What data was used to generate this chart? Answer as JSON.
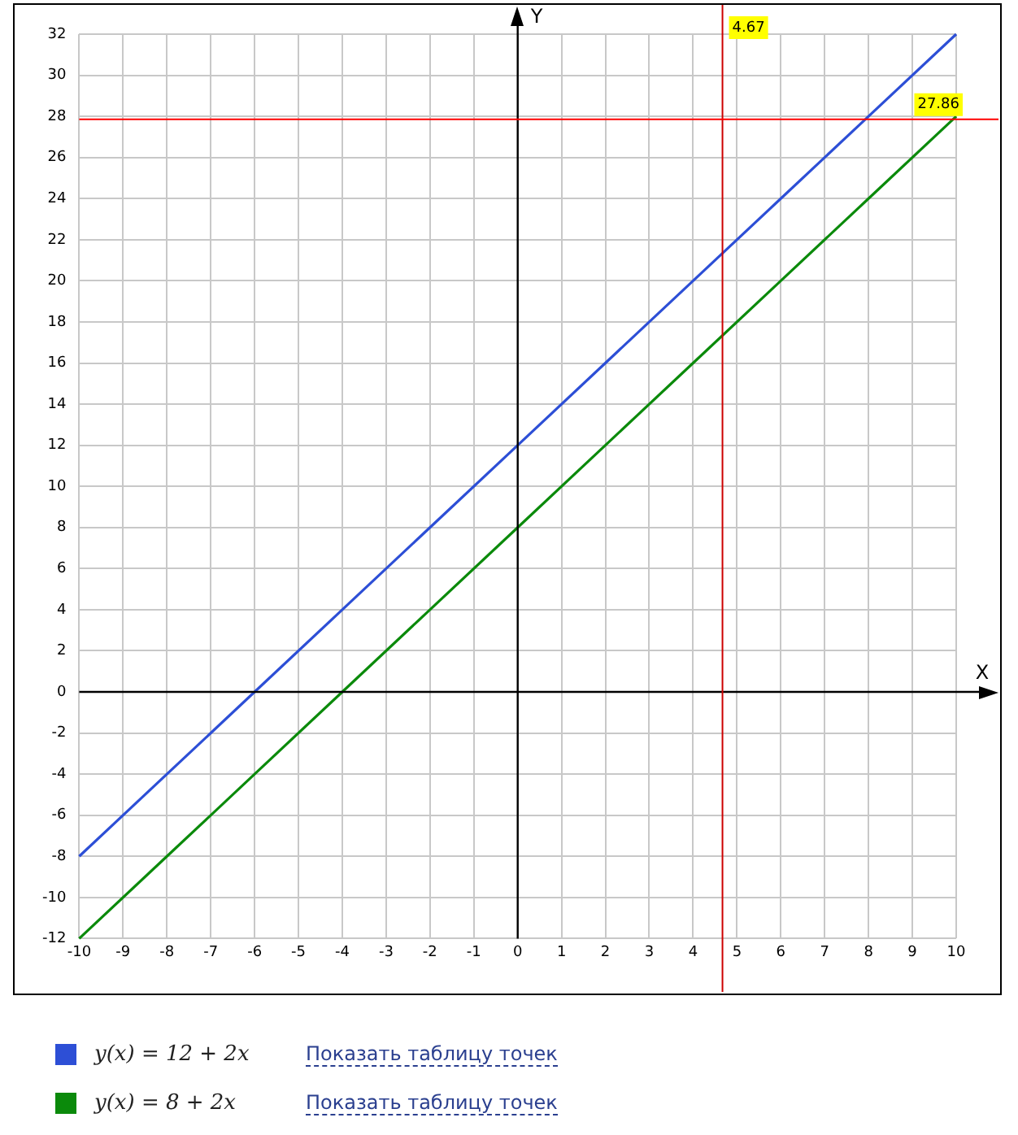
{
  "chart_data": {
    "type": "line",
    "xlabel": "X",
    "ylabel": "Y",
    "series": [
      {
        "name": "y(x) = 12 + 2x",
        "color": "#2d4fd6",
        "values": [
          -8,
          -4,
          0,
          4,
          8,
          12,
          16,
          20,
          24,
          28,
          32
        ]
      },
      {
        "name": "y(x) = 8 + 2x",
        "color": "#0b8a0b",
        "values": [
          -12,
          -8,
          -4,
          0,
          4,
          8,
          12,
          16,
          20,
          24,
          28
        ]
      }
    ],
    "x": [
      -10,
      -8,
      -6,
      -4,
      -2,
      0,
      2,
      4,
      6,
      8,
      10
    ],
    "xlim": [
      -10,
      10
    ],
    "xticks": [
      -10,
      -9,
      -8,
      -7,
      -6,
      -5,
      -4,
      -3,
      -2,
      -1,
      0,
      1,
      2,
      3,
      4,
      5,
      6,
      7,
      8,
      9,
      10
    ],
    "ylim": [
      -12,
      32
    ],
    "yticks": [
      -12,
      -10,
      -8,
      -6,
      -4,
      -2,
      0,
      2,
      4,
      6,
      8,
      10,
      12,
      14,
      16,
      18,
      20,
      22,
      24,
      26,
      28,
      30,
      32
    ],
    "ref_lines": [
      {
        "axis": "x",
        "value": 4.67,
        "label": "4.67",
        "color": "#cc0000"
      },
      {
        "axis": "y",
        "value": 27.86,
        "label": "27.86",
        "color": "#ff0000"
      }
    ],
    "annotations": [
      "Показать таблицу точек",
      "Показать таблицу точек"
    ],
    "grid": true,
    "legend": "bottom",
    "marker": "none",
    "line_style": "solid"
  }
}
